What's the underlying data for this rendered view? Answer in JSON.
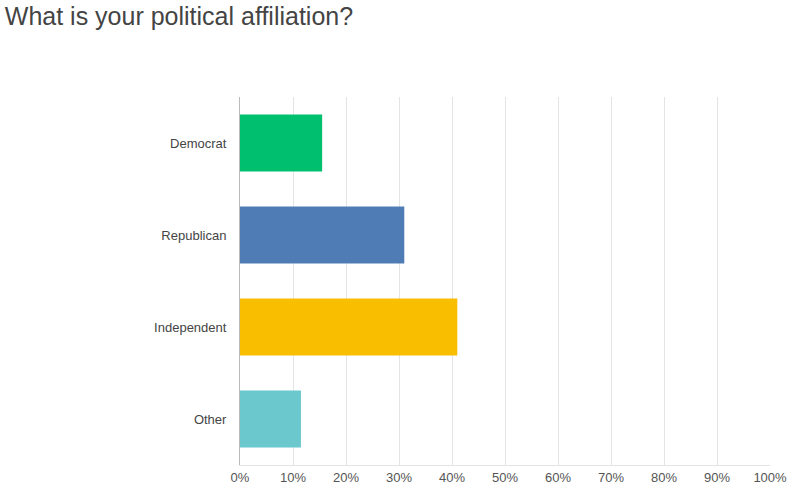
{
  "chart_data": {
    "type": "bar",
    "orientation": "horizontal",
    "title": "What is your political affiliation?",
    "categories": [
      "Democrat",
      "Republican",
      "Independent",
      "Other"
    ],
    "values": [
      15.5,
      31,
      41,
      11.5
    ],
    "colors": [
      "#00bf6f",
      "#507cb6",
      "#f9be00",
      "#6bc8cd"
    ],
    "xlim": [
      0,
      100
    ],
    "xticks": [
      {
        "value": 0,
        "label": "0%"
      },
      {
        "value": 10,
        "label": "10%"
      },
      {
        "value": 20,
        "label": "20%"
      },
      {
        "value": 30,
        "label": "30%"
      },
      {
        "value": 40,
        "label": "40%"
      },
      {
        "value": 50,
        "label": "50%"
      },
      {
        "value": 60,
        "label": "60%"
      },
      {
        "value": 70,
        "label": "70%"
      },
      {
        "value": 80,
        "label": "80%"
      },
      {
        "value": 90,
        "label": "90%"
      },
      {
        "value": 100,
        "label": "100%"
      }
    ],
    "grid": true
  }
}
